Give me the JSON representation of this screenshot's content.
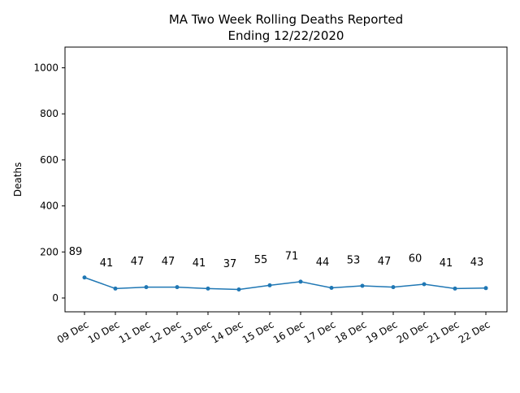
{
  "chart_data": {
    "type": "line",
    "title": "MA Two Week Rolling Deaths Reported",
    "subtitle": "Ending 12/22/2020",
    "xlabel": "",
    "ylabel": "Deaths",
    "categories": [
      "09 Dec",
      "10 Dec",
      "11 Dec",
      "12 Dec",
      "13 Dec",
      "14 Dec",
      "15 Dec",
      "16 Dec",
      "17 Dec",
      "18 Dec",
      "19 Dec",
      "20 Dec",
      "21 Dec",
      "22 Dec"
    ],
    "series": [
      {
        "values": [
          89,
          41,
          47,
          47,
          41,
          37,
          55,
          71,
          44,
          53,
          47,
          60,
          41,
          43
        ],
        "color": "#1f77b4"
      }
    ],
    "data_labels": [
      "89",
      "41",
      "47",
      "47",
      "41",
      "37",
      "55",
      "71",
      "44",
      "53",
      "47",
      "60",
      "41",
      "43"
    ],
    "ylim": [
      -60,
      1090
    ],
    "yticks": [
      0,
      200,
      400,
      600,
      800,
      1000
    ],
    "ytick_labels": [
      "0",
      "200",
      "400",
      "600",
      "800",
      "1000"
    ],
    "grid": false,
    "legend": "none"
  }
}
